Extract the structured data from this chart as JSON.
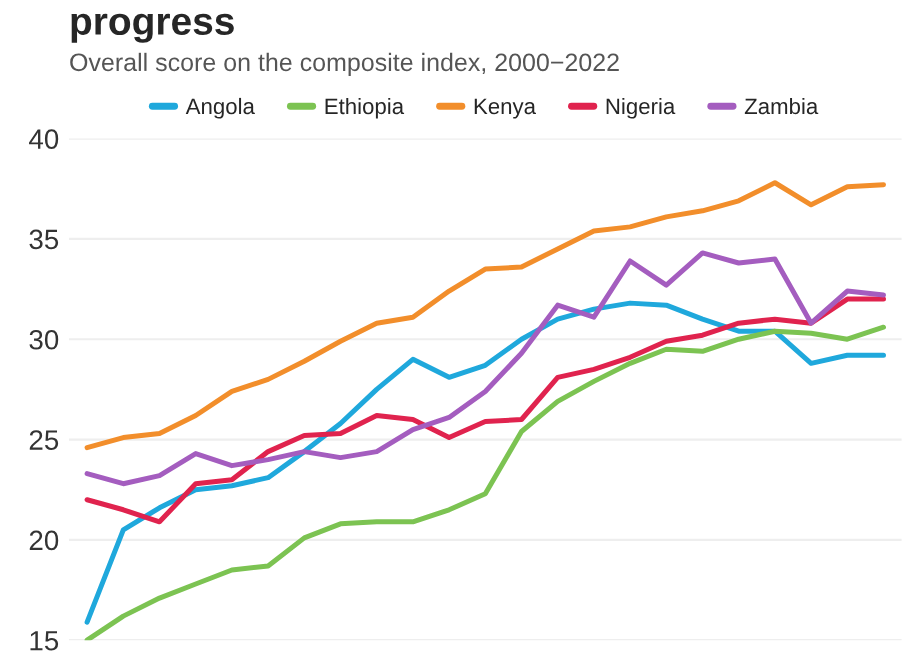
{
  "chart_data": {
    "type": "line",
    "title": "progress",
    "subtitle": "Overall score on the composite index, 2000−2022",
    "categories": [
      null,
      null,
      null,
      null,
      null,
      null,
      null,
      null,
      null,
      null,
      null,
      null,
      null,
      null,
      null,
      null,
      null,
      null,
      null,
      null,
      null,
      null,
      null
    ],
    "series": [
      {
        "name": "Angola",
        "color": "#1fa8dc",
        "values": [
          15.9,
          20.5,
          21.6,
          22.5,
          22.7,
          23.1,
          24.4,
          25.8,
          27.5,
          29.0,
          28.1,
          28.7,
          30.0,
          31.0,
          31.5,
          31.8,
          31.7,
          31.0,
          30.4,
          30.4,
          28.8,
          29.2,
          29.2
        ]
      },
      {
        "name": "Ethiopia",
        "color": "#7cc352",
        "values": [
          15.0,
          16.2,
          17.1,
          17.8,
          18.5,
          18.7,
          20.1,
          20.8,
          20.9,
          20.9,
          21.5,
          22.3,
          25.4,
          26.9,
          27.9,
          28.8,
          29.5,
          29.4,
          30.0,
          30.4,
          30.3,
          30.0,
          30.6
        ]
      },
      {
        "name": "Kenya",
        "color": "#f28e2b",
        "values": [
          24.6,
          25.1,
          25.3,
          26.2,
          27.4,
          28.0,
          28.9,
          29.9,
          30.8,
          31.1,
          32.4,
          33.5,
          33.6,
          34.5,
          35.4,
          35.6,
          36.1,
          36.4,
          36.9,
          37.8,
          36.7,
          37.6,
          37.7
        ]
      },
      {
        "name": "Nigeria",
        "color": "#e0234e",
        "values": [
          22.0,
          21.5,
          20.9,
          22.8,
          23.0,
          24.4,
          25.2,
          25.3,
          26.2,
          26.0,
          25.1,
          25.9,
          26.0,
          28.1,
          28.5,
          29.1,
          29.9,
          30.2,
          30.8,
          31.0,
          30.8,
          32.0,
          32.0
        ]
      },
      {
        "name": "Zambia",
        "color": "#a45dbf",
        "values": [
          23.3,
          22.8,
          23.2,
          24.3,
          23.7,
          24.0,
          24.4,
          24.1,
          24.4,
          25.5,
          26.1,
          27.4,
          29.3,
          31.7,
          31.1,
          33.9,
          32.7,
          34.3,
          33.8,
          34.0,
          30.8,
          32.4,
          32.2
        ]
      }
    ],
    "ylim": [
      15,
      40
    ],
    "yticks": [
      15,
      20,
      25,
      30,
      35,
      40
    ],
    "grid": "y",
    "legend": "top",
    "tick_labels": "y",
    "marker": "none",
    "line_style": "solid"
  }
}
